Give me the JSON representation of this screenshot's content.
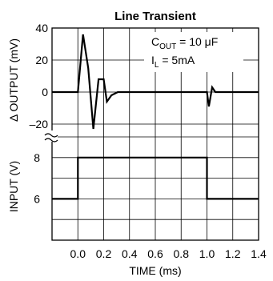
{
  "chart_data": [
    {
      "type": "line",
      "title": "Line Transient",
      "ylabel": "Δ OUTPUT (mV)",
      "xlim": [
        -0.2,
        1.4
      ],
      "ylim": [
        -28,
        40
      ],
      "yticks": [
        -20,
        0,
        20,
        40
      ],
      "ytick_labels": [
        "–20",
        "0",
        "20",
        "40"
      ],
      "grid": true,
      "annotation": {
        "line1": "C",
        "line1_sub": "OUT",
        "line1_rest": " = 10 μF",
        "line2": "I",
        "line2_sub": "L",
        "line2_rest": " = 5mA"
      },
      "series": [
        {
          "x": [
            -0.2,
            0.0,
            0.04,
            0.08,
            0.12,
            0.16,
            0.2,
            0.225,
            0.26,
            0.31,
            0.36,
            1.0,
            1.015,
            1.04,
            1.065,
            1.1,
            1.4
          ],
          "values": [
            0,
            0,
            36,
            15,
            -23,
            8,
            8,
            -6,
            -2,
            0,
            0,
            0,
            -9,
            3,
            0,
            0,
            0
          ]
        }
      ]
    },
    {
      "type": "line",
      "ylabel": "INPUT (V)",
      "xlabel": "TIME (ms)",
      "xlim": [
        -0.2,
        1.4
      ],
      "ylim": [
        4,
        9
      ],
      "yticks": [
        6,
        8
      ],
      "ytick_labels": [
        "6",
        "8"
      ],
      "xticks": [
        0.0,
        0.2,
        0.4,
        0.6,
        0.8,
        1.0,
        1.2,
        1.4
      ],
      "xtick_labels": [
        "0.0",
        "0.2",
        "0.4",
        "0.6",
        "0.8",
        "1.0",
        "1.2",
        "1.4"
      ],
      "grid": true,
      "series": [
        {
          "x": [
            -0.2,
            0.0,
            0.0,
            1.0,
            1.0,
            1.4
          ],
          "values": [
            6,
            6,
            8,
            8,
            6,
            6
          ]
        }
      ]
    }
  ]
}
